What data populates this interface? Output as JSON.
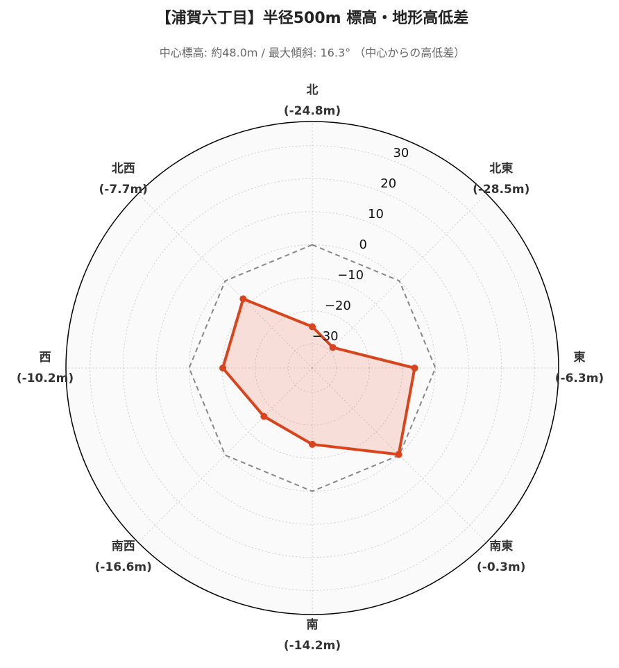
{
  "chart_data": {
    "type": "radar",
    "title": "【浦賀六丁目】半径500m 標高・地形高低差",
    "subtitle": "中心標高: 約48.0m / 最大傾斜: 16.3° （中心からの高低差）",
    "categories": [
      "北",
      "北東",
      "東",
      "南東",
      "南",
      "南西",
      "西",
      "北西"
    ],
    "values": [
      -24.8,
      -28.5,
      -6.3,
      -0.3,
      -14.2,
      -16.6,
      -10.2,
      -7.7
    ],
    "value_labels": [
      "(-24.8m)",
      "(-28.5m)",
      "(-6.3m)",
      "(-0.3m)",
      "(-14.2m)",
      "(-16.6m)",
      "(-10.2m)",
      "(-7.7m)"
    ],
    "color": "#d9441c",
    "reference_line": 0,
    "ylim": [
      -37.3,
      37.3
    ],
    "yticks": [
      -30,
      -20,
      -10,
      0,
      10,
      20,
      30
    ],
    "grid": true
  }
}
